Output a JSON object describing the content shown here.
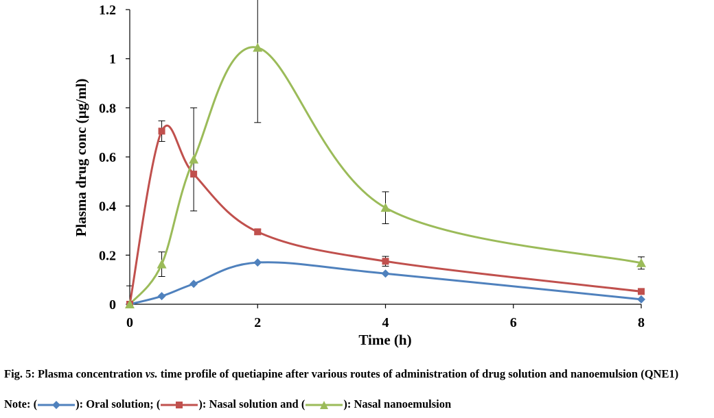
{
  "chart_data": {
    "type": "line",
    "xlabel": "Time (h)",
    "ylabel": "Plasma drug conc (µg/ml)",
    "xlim": [
      0,
      8
    ],
    "ylim": [
      0,
      1.2
    ],
    "x_ticks": [
      "0",
      "2",
      "4",
      "6",
      "8"
    ],
    "y_ticks": [
      "0",
      "0.2",
      "0.4",
      "0.6",
      "0.8",
      "1",
      "1.2"
    ],
    "grid": false,
    "x": [
      0,
      0.5,
      1,
      2,
      4,
      8
    ],
    "series": [
      {
        "marker": "diamond",
        "color": "#4f81bd",
        "values": [
          0,
          0.033,
          0.083,
          0.17,
          0.125,
          0.02
        ],
        "errors": [
          null,
          null,
          null,
          null,
          null,
          null
        ]
      },
      {
        "marker": "square",
        "color": "#c0504d",
        "values": [
          0,
          0.705,
          0.53,
          0.295,
          0.175,
          0.052
        ],
        "errors": [
          null,
          0.042,
          null,
          0.01,
          0.02,
          null
        ]
      },
      {
        "marker": "triangle",
        "color": "#9bbb59",
        "values": [
          0,
          0.163,
          0.59,
          1.045,
          0.393,
          0.168
        ],
        "errors": [
          0.075,
          0.05,
          0.21,
          0.305,
          0.065,
          0.025
        ]
      }
    ]
  },
  "caption": {
    "prefix": "Fig. 5: Plasma concentration ",
    "italic": "vs.",
    "rest": " time profile of quetiapine after various routes of administration of drug solution and nanoemulsion (QNE1)"
  },
  "note": {
    "label": "Note: (",
    "oral": "): Oral solution; (",
    "nasal_solution": "): Nasal solution and (",
    "nasal_nano": "): Nasal nanoemulsion"
  }
}
